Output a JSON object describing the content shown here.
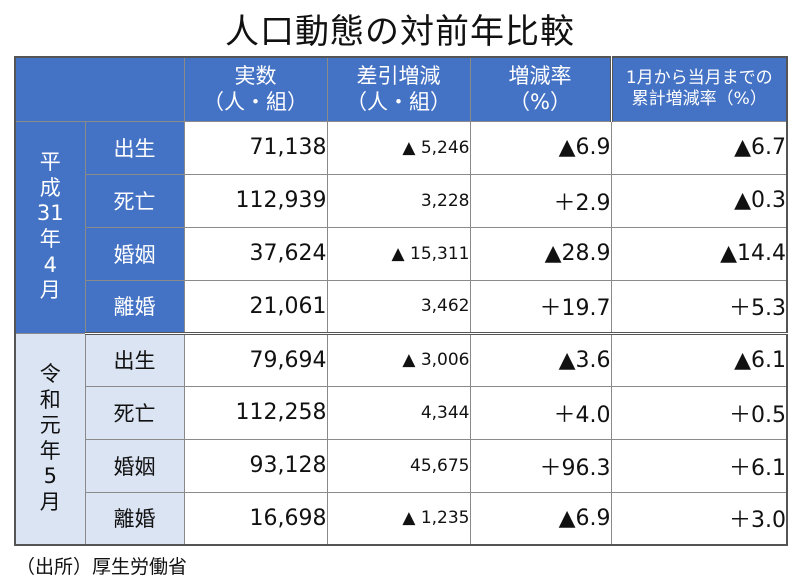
{
  "title": "人口動態の対前年比較",
  "headers": {
    "actual_main": "実数",
    "actual_sub": "（人・組）",
    "diff_main": "差引増減",
    "diff_sub": "（人・組）",
    "rate_main": "増減率",
    "rate_sub": "（%）",
    "cum_main": "1月から当月までの",
    "cum_sub": "累計増減率（%）"
  },
  "eras": [
    {
      "chars": [
        "平",
        "成",
        "31",
        "年",
        "4",
        "月"
      ],
      "rows": [
        {
          "label": "出生",
          "actual": "71,138",
          "diff": "▲ 5,246",
          "rate": "▲6.9",
          "cum": "▲6.7"
        },
        {
          "label": "死亡",
          "actual": "112,939",
          "diff": "3,228",
          "rate": "＋2.9",
          "cum": "▲0.3"
        },
        {
          "label": "婚姻",
          "actual": "37,624",
          "diff": "▲ 15,311",
          "rate": "▲28.9",
          "cum": "▲14.4"
        },
        {
          "label": "離婚",
          "actual": "21,061",
          "diff": "3,462",
          "rate": "＋19.7",
          "cum": "＋5.3"
        }
      ]
    },
    {
      "chars": [
        "令",
        "和",
        "元",
        "年",
        "5",
        "月"
      ],
      "rows": [
        {
          "label": "出生",
          "actual": "79,694",
          "diff": "▲ 3,006",
          "rate": "▲3.6",
          "cum": "▲6.1"
        },
        {
          "label": "死亡",
          "actual": "112,258",
          "diff": "4,344",
          "rate": "＋4.0",
          "cum": "＋0.5"
        },
        {
          "label": "婚姻",
          "actual": "93,128",
          "diff": "45,675",
          "rate": "＋96.3",
          "cum": "＋6.1"
        },
        {
          "label": "離婚",
          "actual": "16,698",
          "diff": "▲ 1,235",
          "rate": "▲6.9",
          "cum": "＋3.0"
        }
      ]
    }
  ],
  "source": "（出所）厚生労働省",
  "colors": {
    "header_bg": "#4472c4",
    "era1_bg": "#4472c4",
    "era2_bg": "#dbe4f3"
  }
}
